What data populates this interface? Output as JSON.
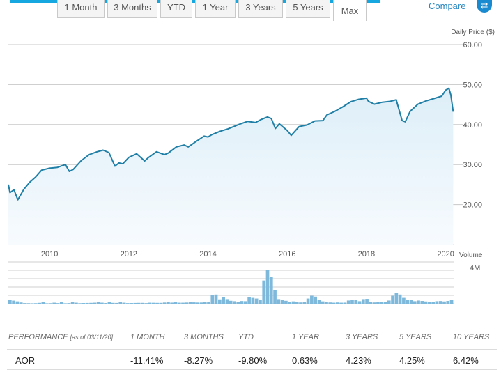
{
  "tabs": [
    {
      "label": "1 Month",
      "active": false
    },
    {
      "label": "3 Months",
      "active": false
    },
    {
      "label": "YTD",
      "active": false
    },
    {
      "label": "1 Year",
      "active": false
    },
    {
      "label": "3 Years",
      "active": false
    },
    {
      "label": "5 Years",
      "active": false
    },
    {
      "label": "Max",
      "active": true
    }
  ],
  "compare": {
    "label": "Compare",
    "icon": "swap-arrows-icon"
  },
  "colors": {
    "line": "#1f7fa6",
    "area_top": "#e1eff9",
    "volume": "#7eb9dc",
    "accent": "#17a7e0"
  },
  "chart_data": [
    {
      "type": "line",
      "ylabel": "Daily Price ($)",
      "y_ticks": [
        "60.00",
        "50.00",
        "40.00",
        "30.00",
        "20.00"
      ],
      "ylim": [
        10,
        60
      ],
      "x_ticks": [
        "2010",
        "2012",
        "2014",
        "2016",
        "2018",
        "2020"
      ],
      "xlim": [
        2008.96,
        2020.2
      ],
      "grid": true,
      "area_fill": true,
      "series": [
        {
          "x": [
            2008.96,
            2009.0,
            2009.1,
            2009.2,
            2009.35,
            2009.5,
            2009.65,
            2009.8,
            2010.0,
            2010.2,
            2010.4,
            2010.5,
            2010.6,
            2010.8,
            2011.0,
            2011.2,
            2011.35,
            2011.5,
            2011.65,
            2011.75,
            2011.85,
            2012.0,
            2012.2,
            2012.4,
            2012.5,
            2012.7,
            2012.9,
            2013.0,
            2013.2,
            2013.4,
            2013.5,
            2013.7,
            2013.9,
            2014.0,
            2014.1,
            2014.3,
            2014.5,
            2014.6,
            2014.8,
            2015.0,
            2015.2,
            2015.35,
            2015.5,
            2015.6,
            2015.7,
            2015.8,
            2016.0,
            2016.1,
            2016.3,
            2016.5,
            2016.7,
            2016.9,
            2017.0,
            2017.2,
            2017.4,
            2017.6,
            2017.8,
            2018.0,
            2018.05,
            2018.2,
            2018.4,
            2018.6,
            2018.75,
            2018.9,
            2018.98,
            2019.1,
            2019.3,
            2019.5,
            2019.7,
            2019.9,
            2020.0,
            2020.08,
            2020.13,
            2020.19
          ],
          "y": [
            25.0,
            23.0,
            23.7,
            21.2,
            23.8,
            25.6,
            26.9,
            28.6,
            29.1,
            29.3,
            30.0,
            28.3,
            28.8,
            31.0,
            32.5,
            33.2,
            33.6,
            33.0,
            29.6,
            30.4,
            30.2,
            31.8,
            32.7,
            30.9,
            31.8,
            33.2,
            32.5,
            32.9,
            34.4,
            34.9,
            34.4,
            35.8,
            37.1,
            36.9,
            37.5,
            38.3,
            38.9,
            39.3,
            40.1,
            40.8,
            40.5,
            41.3,
            41.9,
            41.5,
            39.0,
            40.2,
            38.5,
            37.3,
            39.5,
            39.9,
            40.9,
            41.0,
            42.4,
            43.3,
            44.4,
            45.7,
            46.3,
            46.6,
            45.8,
            45.1,
            45.6,
            45.8,
            46.2,
            41.0,
            40.7,
            43.3,
            45.1,
            45.9,
            46.5,
            47.1,
            48.6,
            49.1,
            47.4,
            43.2
          ]
        }
      ]
    },
    {
      "type": "bar",
      "ylabel": "Volume",
      "y_ticks": [
        "4M"
      ],
      "ylim": [
        0,
        5
      ],
      "values": [
        0.45,
        0.37,
        0.28,
        0.15,
        0.07,
        0.06,
        0.05,
        0.06,
        0.1,
        0.18,
        0.05,
        0.06,
        0.12,
        0.07,
        0.2,
        0.05,
        0.07,
        0.22,
        0.12,
        0.06,
        0.08,
        0.09,
        0.1,
        0.12,
        0.22,
        0.12,
        0.08,
        0.24,
        0.1,
        0.09,
        0.23,
        0.12,
        0.07,
        0.08,
        0.09,
        0.1,
        0.1,
        0.07,
        0.12,
        0.11,
        0.1,
        0.1,
        0.14,
        0.18,
        0.13,
        0.19,
        0.12,
        0.12,
        0.14,
        0.2,
        0.16,
        0.14,
        0.14,
        0.22,
        0.24,
        1.0,
        1.1,
        0.52,
        0.8,
        0.55,
        0.35,
        0.3,
        0.25,
        0.32,
        0.3,
        0.75,
        0.7,
        0.62,
        0.45,
        2.78,
        4.0,
        3.2,
        1.6,
        0.55,
        0.45,
        0.35,
        0.25,
        0.28,
        0.18,
        0.15,
        0.25,
        0.62,
        0.95,
        0.85,
        0.5,
        0.28,
        0.18,
        0.15,
        0.12,
        0.15,
        0.12,
        0.13,
        0.38,
        0.5,
        0.42,
        0.3,
        0.55,
        0.58,
        0.22,
        0.15,
        0.18,
        0.17,
        0.2,
        0.38,
        0.95,
        1.3,
        1.1,
        0.7,
        0.5,
        0.42,
        0.3,
        0.38,
        0.33,
        0.27,
        0.25,
        0.24,
        0.3,
        0.32,
        0.27,
        0.33,
        0.45
      ]
    }
  ],
  "performance": {
    "label": "PERFORMANCE",
    "as_of": "[as of 03/11/20]",
    "columns": [
      "1 MONTH",
      "3 MONTHS",
      "YTD",
      "1 YEAR",
      "3 YEARS",
      "5 YEARS",
      "10 YEARS"
    ],
    "rows": [
      {
        "ticker": "AOR",
        "values": [
          "-11.41%",
          "-8.27%",
          "-9.80%",
          "0.63%",
          "4.23%",
          "4.25%",
          "6.42%"
        ]
      }
    ]
  }
}
